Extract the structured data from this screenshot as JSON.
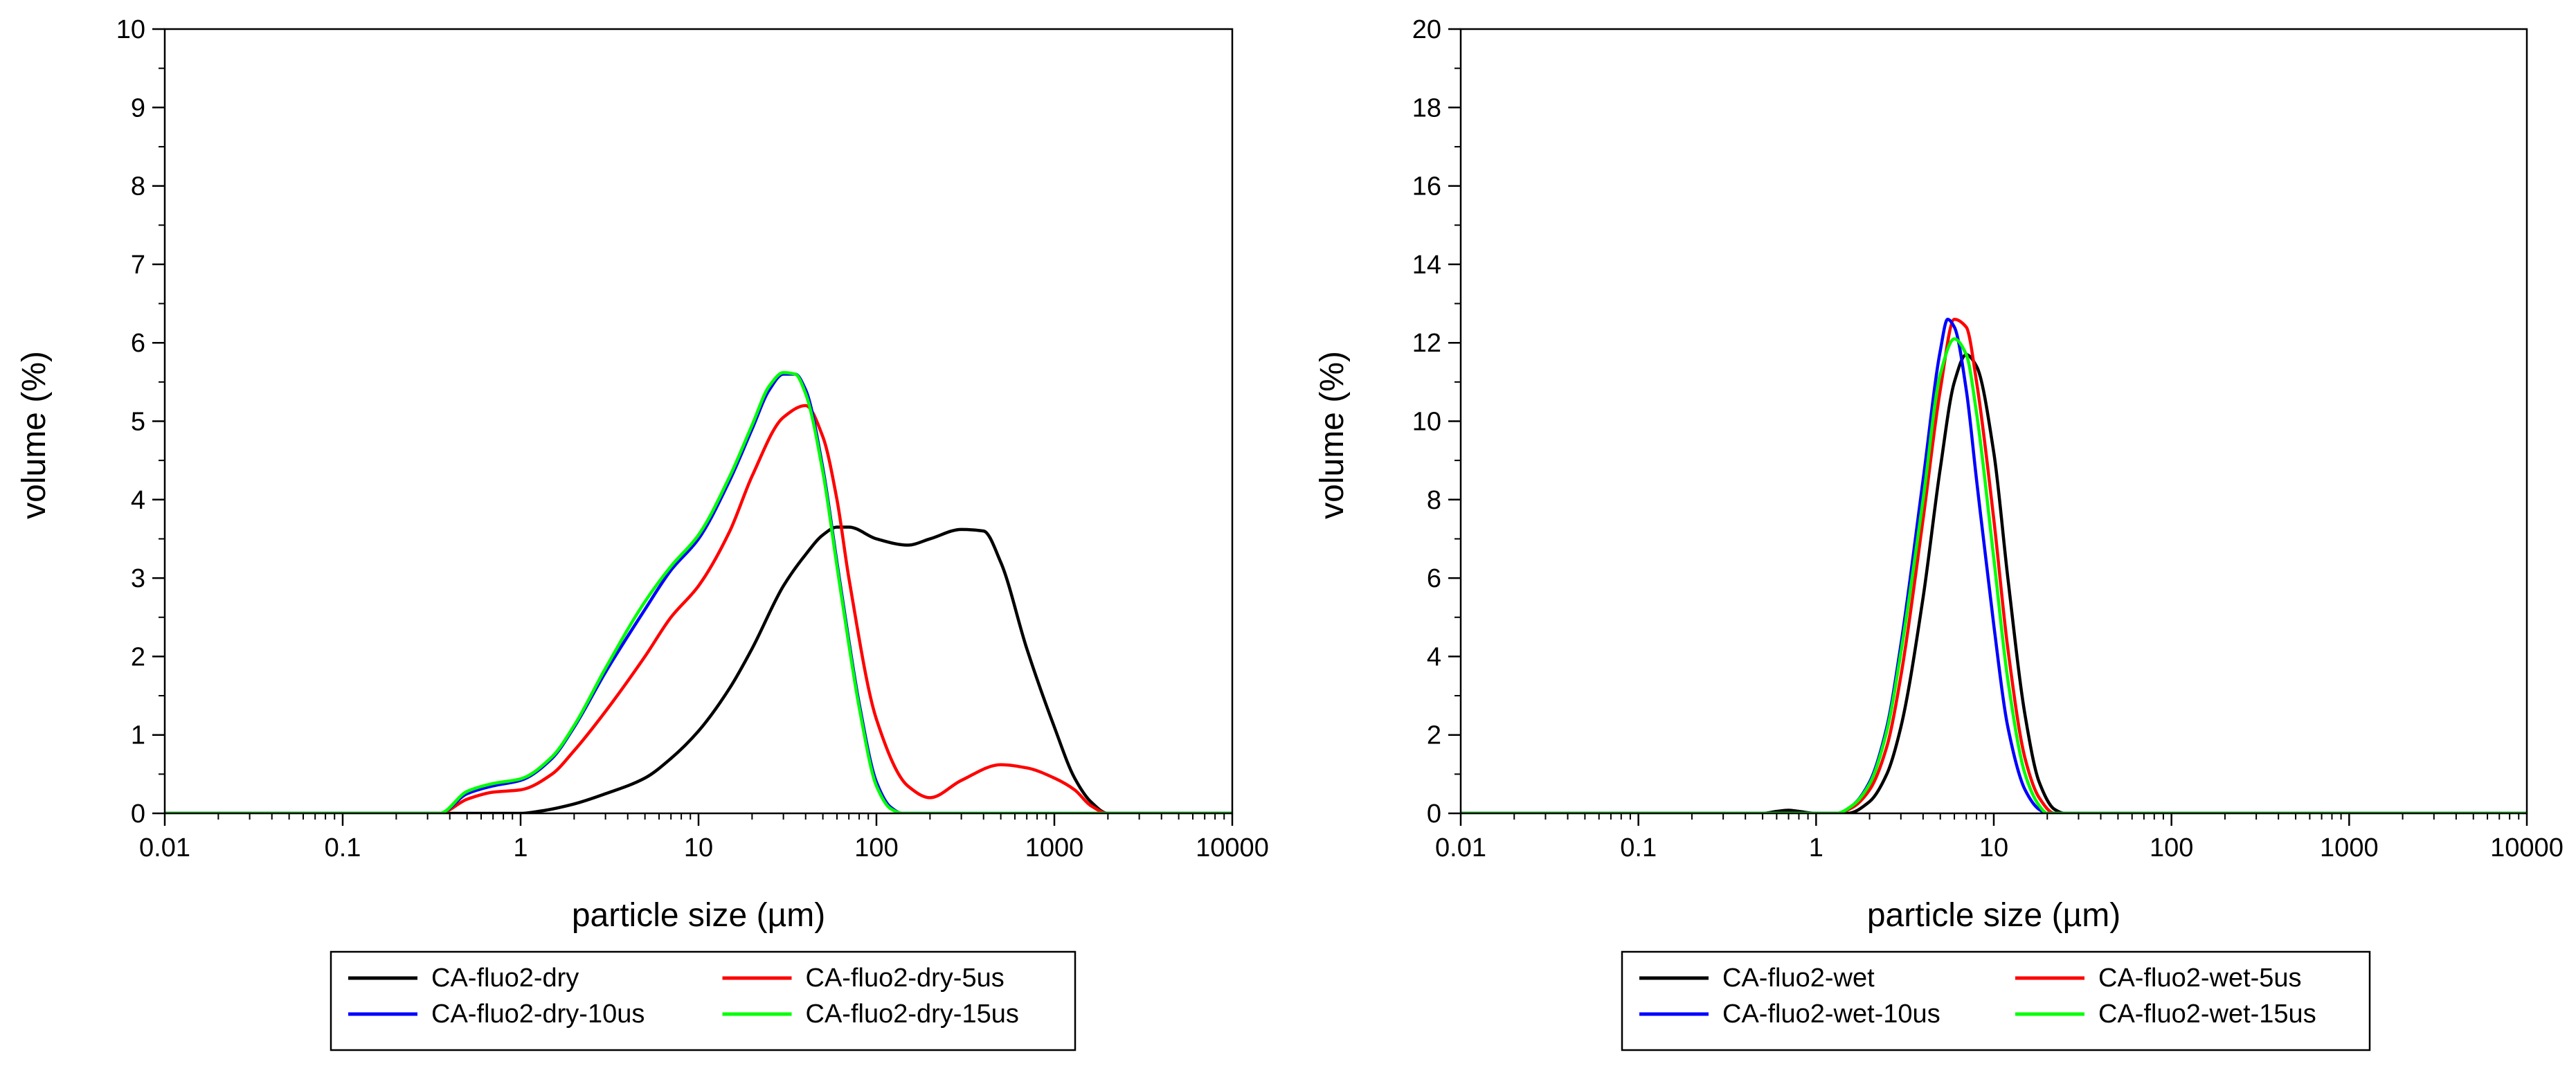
{
  "chart_data": [
    {
      "type": "line",
      "title": "",
      "xlabel": "particle size (µm)",
      "ylabel": "volume (%)",
      "xscale": "log",
      "xlim": [
        0.01,
        10000
      ],
      "ylim": [
        0,
        10
      ],
      "xticks": [
        0.01,
        0.1,
        1,
        10,
        100,
        1000,
        10000
      ],
      "xtick_labels": [
        "0.01",
        "0.1",
        "1",
        "10",
        "100",
        "1000",
        "10000"
      ],
      "yticks": [
        0,
        1,
        2,
        3,
        4,
        5,
        6,
        7,
        8,
        9,
        10
      ],
      "ytick_labels": [
        "0",
        "1",
        "2",
        "3",
        "4",
        "5",
        "6",
        "7",
        "8",
        "9",
        "10"
      ],
      "grid": false,
      "legend_position": "bottom",
      "series": [
        {
          "name": "CA-fluo2-dry",
          "color": "#000000",
          "x": [
            0.01,
            1.0,
            1.3,
            2,
            3,
            5,
            7,
            10,
            15,
            20,
            30,
            40,
            50,
            60,
            70,
            100,
            150,
            200,
            300,
            400,
            500,
            700,
            1000,
            1300,
            1600,
            2000,
            10000
          ],
          "y": [
            0,
            0,
            0.03,
            0.12,
            0.25,
            0.45,
            0.7,
            1.05,
            1.6,
            2.1,
            2.9,
            3.3,
            3.55,
            3.65,
            3.65,
            3.5,
            3.42,
            3.5,
            3.62,
            3.6,
            3.2,
            2.1,
            1.1,
            0.45,
            0.15,
            0,
            0
          ]
        },
        {
          "name": "CA-fluo2-dry-5us",
          "color": "#ff0000",
          "x": [
            0.01,
            0.35,
            0.5,
            0.7,
            1,
            1.5,
            2,
            3,
            5,
            7,
            10,
            15,
            20,
            30,
            40,
            50,
            60,
            70,
            100,
            150,
            200,
            300,
            500,
            700,
            1000,
            1300,
            1600,
            2000,
            10000
          ],
          "y": [
            0,
            0,
            0.18,
            0.27,
            0.3,
            0.5,
            0.8,
            1.3,
            2.0,
            2.5,
            2.9,
            3.6,
            4.3,
            5.05,
            5.2,
            4.8,
            4.0,
            3.0,
            1.2,
            0.35,
            0.2,
            0.42,
            0.62,
            0.58,
            0.45,
            0.3,
            0.1,
            0,
            0
          ]
        },
        {
          "name": "CA-fluo2-dry-10us",
          "color": "#0000ff",
          "x": [
            0.01,
            0.35,
            0.5,
            0.7,
            1,
            1.5,
            2,
            3,
            5,
            7,
            10,
            15,
            20,
            25,
            30,
            35,
            40,
            50,
            60,
            70,
            80,
            100,
            120,
            140,
            10000
          ],
          "y": [
            0,
            0,
            0.25,
            0.35,
            0.42,
            0.7,
            1.1,
            1.8,
            2.6,
            3.1,
            3.5,
            4.25,
            4.9,
            5.4,
            5.6,
            5.6,
            5.4,
            4.4,
            3.2,
            2.2,
            1.4,
            0.4,
            0.08,
            0,
            0
          ]
        },
        {
          "name": "CA-fluo2-dry-15us",
          "color": "#00ff00",
          "x": [
            0.01,
            0.35,
            0.5,
            0.7,
            1,
            1.5,
            2,
            3,
            5,
            7,
            10,
            15,
            20,
            25,
            30,
            35,
            40,
            50,
            60,
            70,
            80,
            100,
            120,
            140,
            10000
          ],
          "y": [
            0,
            0,
            0.28,
            0.38,
            0.44,
            0.72,
            1.12,
            1.85,
            2.7,
            3.15,
            3.55,
            4.3,
            4.95,
            5.45,
            5.62,
            5.6,
            5.35,
            4.35,
            3.15,
            2.15,
            1.35,
            0.35,
            0.06,
            0,
            0
          ]
        }
      ]
    },
    {
      "type": "line",
      "title": "",
      "xlabel": "particle size (µm)",
      "ylabel": "volume (%)",
      "xscale": "log",
      "xlim": [
        0.01,
        10000
      ],
      "ylim": [
        0,
        20
      ],
      "xticks": [
        0.01,
        0.1,
        1,
        10,
        100,
        1000,
        10000
      ],
      "xtick_labels": [
        "0.01",
        "0.1",
        "1",
        "10",
        "100",
        "1000",
        "10000"
      ],
      "yticks": [
        0,
        2,
        4,
        6,
        8,
        10,
        12,
        14,
        16,
        18,
        20
      ],
      "ytick_labels": [
        "0",
        "2",
        "4",
        "6",
        "8",
        "10",
        "12",
        "14",
        "16",
        "18",
        "20"
      ],
      "grid": false,
      "legend_position": "bottom",
      "series": [
        {
          "name": "CA-fluo2-wet",
          "color": "#000000",
          "x": [
            0.01,
            0.5,
            0.6,
            0.7,
            0.8,
            1.0,
            1.5,
            2,
            2.5,
            3,
            4,
            5,
            6,
            7,
            8,
            10,
            12,
            15,
            18,
            22,
            25,
            10000
          ],
          "y": [
            0,
            0,
            0.05,
            0.08,
            0.05,
            0,
            0,
            0.3,
            1.0,
            2.2,
            5.5,
            8.8,
            11.0,
            11.7,
            11.4,
            9.2,
            6.0,
            2.5,
            0.8,
            0.1,
            0,
            0
          ]
        },
        {
          "name": "CA-fluo2-wet-5us",
          "color": "#ff0000",
          "x": [
            0.01,
            1.3,
            1.6,
            2,
            2.5,
            3,
            4,
            5,
            6,
            7,
            8,
            10,
            12,
            15,
            18,
            22,
            10000
          ],
          "y": [
            0,
            0,
            0.15,
            0.6,
            1.7,
            3.5,
            7.5,
            10.8,
            12.6,
            12.4,
            11.0,
            7.5,
            4.2,
            1.4,
            0.4,
            0,
            0
          ]
        },
        {
          "name": "CA-fluo2-wet-10us",
          "color": "#0000ff",
          "x": [
            0.01,
            1.3,
            1.6,
            2,
            2.5,
            3,
            4,
            5,
            5.5,
            6,
            7,
            8,
            10,
            12,
            15,
            18,
            20,
            10000
          ],
          "y": [
            0,
            0,
            0.2,
            0.8,
            2.2,
            4.3,
            8.5,
            11.8,
            12.6,
            12.4,
            10.8,
            8.5,
            4.8,
            2.2,
            0.6,
            0.1,
            0,
            0
          ]
        },
        {
          "name": "CA-fluo2-wet-15us",
          "color": "#00ff00",
          "x": [
            0.01,
            1.3,
            1.6,
            2,
            2.5,
            3,
            4,
            5,
            6,
            7,
            8,
            10,
            12,
            15,
            18,
            20,
            10000
          ],
          "y": [
            0,
            0,
            0.2,
            0.75,
            2.1,
            4.1,
            8.0,
            11.2,
            12.1,
            11.7,
            10.2,
            6.5,
            3.4,
            1.0,
            0.2,
            0,
            0
          ]
        }
      ]
    }
  ]
}
